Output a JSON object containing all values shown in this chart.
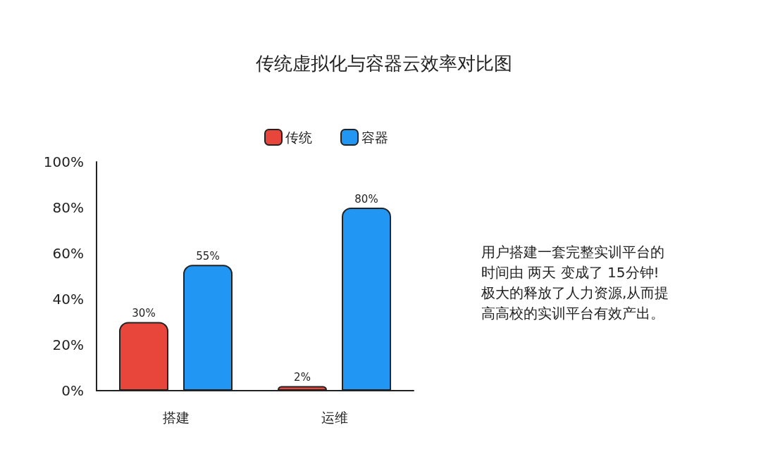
{
  "chart_data": {
    "type": "bar",
    "title": "传统虚拟化与容器云效率对比图",
    "categories": [
      "搭建",
      "运维"
    ],
    "series": [
      {
        "name": "传统",
        "color": "#e8463a",
        "values": [
          30,
          2
        ],
        "value_labels": [
          "30%",
          "2%"
        ]
      },
      {
        "name": "容器",
        "color": "#2196f3",
        "values": [
          55,
          80
        ],
        "value_labels": [
          "55%",
          "80%"
        ]
      }
    ],
    "ylim": [
      0,
      100
    ],
    "yticks": [
      {
        "value": 0,
        "label": "0%"
      },
      {
        "value": 20,
        "label": "20%"
      },
      {
        "value": 40,
        "label": "40%"
      },
      {
        "value": 60,
        "label": "60%"
      },
      {
        "value": 80,
        "label": "80%"
      },
      {
        "value": 100,
        "label": "100%"
      }
    ],
    "grid": false,
    "legend": "top",
    "annotations": [
      "用户搭建一套完整实训平台的时间由 两天 变成了 15分钟!极大的释放了人力资源,从而提高高校的实训平台有效产出。"
    ]
  }
}
